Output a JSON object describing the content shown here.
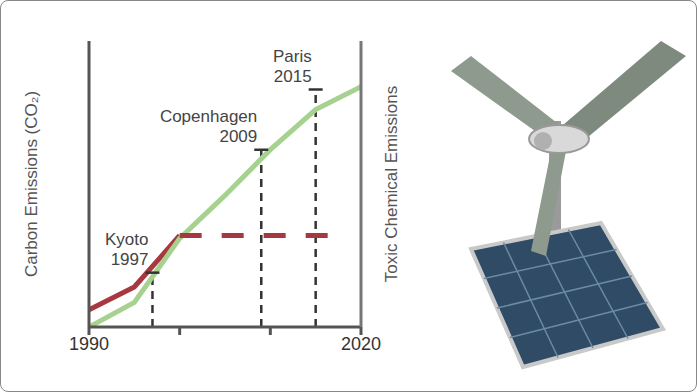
{
  "chart_data": {
    "type": "line",
    "y_label": "Carbon Emissions (CO₂)",
    "y2_label": "Toxic Chemical Emissions",
    "xlim": [
      1990,
      2020
    ],
    "xticks": [
      {
        "value": 1990,
        "label": "1990"
      },
      {
        "value": 2000,
        "label": null
      },
      {
        "value": 2010,
        "label": null
      },
      {
        "value": 2020,
        "label": "2020"
      }
    ],
    "ylim": [
      0,
      100
    ],
    "yticks": [],
    "y2lim": [
      0,
      100
    ],
    "y2ticks": [],
    "tick_labels": "x",
    "grid": false,
    "series": [
      {
        "color": "#a8383f",
        "line_style": "solid",
        "x": [
          1990,
          1995,
          2000
        ],
        "values": [
          6,
          14,
          32
        ]
      },
      {
        "color": "#a6d18f",
        "line_style": "solid",
        "axis": "y2",
        "x": [
          1990,
          1995,
          2000,
          2005,
          2010,
          2015,
          2020
        ],
        "values": [
          0,
          8.6,
          31,
          46,
          62,
          76,
          84
        ]
      },
      {
        "color": "#a8383f",
        "line_style": "dashed",
        "x": [
          2000,
          2018
        ],
        "values": [
          32,
          32
        ]
      }
    ],
    "annotations": [
      {
        "label": "Kyoto",
        "x": 1997
      },
      {
        "label": "Copenhagen",
        "x": 2009
      },
      {
        "label": "Paris",
        "x": 2015
      }
    ]
  }
}
